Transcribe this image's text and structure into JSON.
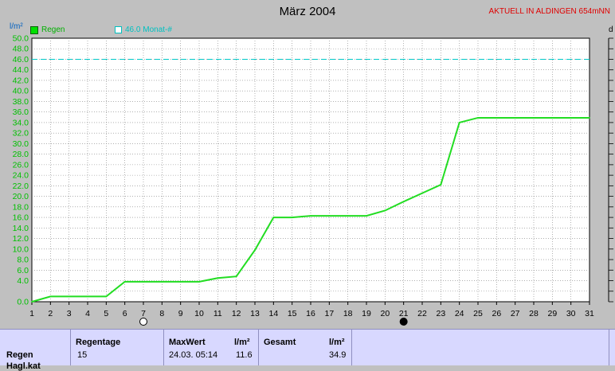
{
  "chart_data": {
    "type": "line",
    "title": "März 2004",
    "ylabel": "l/m²",
    "ylim": [
      0,
      50
    ],
    "yticks": [
      "0.0",
      "4.0",
      "6.0",
      "8.0",
      "10.0",
      "12.0",
      "14.0",
      "16.0",
      "18.0",
      "20.0",
      "22.0",
      "24.0",
      "26.0",
      "28.0",
      "30.0",
      "32.0",
      "34.0",
      "36.0",
      "38.0",
      "40.0",
      "42.0",
      "44.0",
      "46.0",
      "48.0",
      "50.0"
    ],
    "xlim": [
      1,
      31
    ],
    "categories": [
      "1",
      "2",
      "3",
      "4",
      "5",
      "6",
      "7",
      "8",
      "9",
      "10",
      "11",
      "12",
      "13",
      "14",
      "15",
      "16",
      "17",
      "18",
      "19",
      "20",
      "21",
      "22",
      "23",
      "24",
      "25",
      "26",
      "27",
      "28",
      "29",
      "30",
      "31"
    ],
    "series": [
      {
        "name": "Regen",
        "color": "#22dd22",
        "x": [
          1,
          2,
          3,
          4,
          5,
          6,
          7,
          8,
          9,
          10,
          11,
          12,
          13,
          14,
          15,
          16,
          17,
          18,
          19,
          20,
          21,
          22,
          23,
          24,
          25,
          26,
          27,
          28,
          29,
          30,
          31
        ],
        "values": [
          0.0,
          1.0,
          1.0,
          1.0,
          1.0,
          3.8,
          3.8,
          3.8,
          3.8,
          3.8,
          4.5,
          4.8,
          9.8,
          16.0,
          16.0,
          16.3,
          16.3,
          16.3,
          16.3,
          17.3,
          19.0,
          20.6,
          22.2,
          34.0,
          34.9,
          34.9,
          34.9,
          34.9,
          34.9,
          34.9,
          34.9
        ]
      }
    ],
    "reference_line": {
      "label": "46.0 Monat-#",
      "value": 46.0,
      "color": "#00c8c8"
    },
    "grid": true,
    "moon_markers": [
      {
        "day": 7,
        "phase": "full-moon"
      },
      {
        "day": 21,
        "phase": "new-moon"
      }
    ]
  },
  "header": {
    "title": "März 2004",
    "station": "AKTUELL IN ALDINGEN 654mNN",
    "unit": "l/m²",
    "legend_rain": "Regen",
    "legend_avg": "46.0 Monat-#",
    "right_cut": "d"
  },
  "footer": {
    "row_label": "Regen",
    "row_label2": "Hagl.kat",
    "regentage_header": "Regentage",
    "regentage_value": "15",
    "maxwert_header": "MaxWert",
    "maxwert_unit": "l/m²",
    "maxwert_date": "24.03.  05:14",
    "maxwert_value": "11.6",
    "gesamt_header": "Gesamt",
    "gesamt_unit": "l/m²",
    "gesamt_value": "34.9"
  }
}
